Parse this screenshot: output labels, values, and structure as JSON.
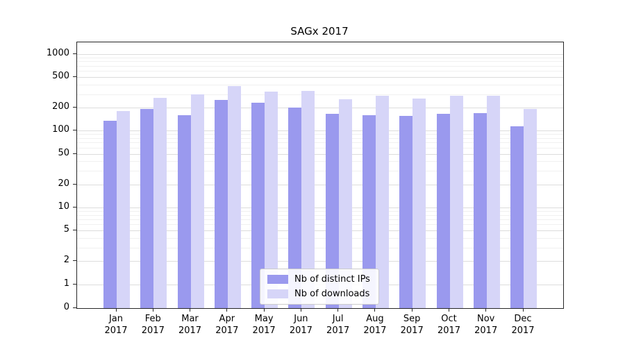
{
  "chart_data": {
    "type": "bar",
    "title": "SAGx 2017",
    "categories": [
      "Jan 2017",
      "Feb 2017",
      "Mar 2017",
      "Apr 2017",
      "May 2017",
      "Jun 2017",
      "Jul 2017",
      "Aug 2017",
      "Sep 2017",
      "Oct 2017",
      "Nov 2017",
      "Dec 2017"
    ],
    "series": [
      {
        "name": "Nb of distinct IPs",
        "color": "#9a99ee",
        "values": [
          135,
          190,
          160,
          250,
          230,
          200,
          165,
          160,
          155,
          165,
          170,
          113
        ]
      },
      {
        "name": "Nb of downloads",
        "color": "#d6d5f8",
        "values": [
          180,
          265,
          295,
          380,
          320,
          330,
          255,
          285,
          260,
          285,
          285,
          190
        ]
      }
    ],
    "yscale": "symlog",
    "ylim": [
      0,
      1000
    ],
    "yticks": [
      0,
      1,
      2,
      5,
      10,
      20,
      50,
      100,
      200,
      500,
      1000
    ],
    "grid": "horizontal log minor gridlines",
    "legend_position": "lower center inside plot"
  }
}
